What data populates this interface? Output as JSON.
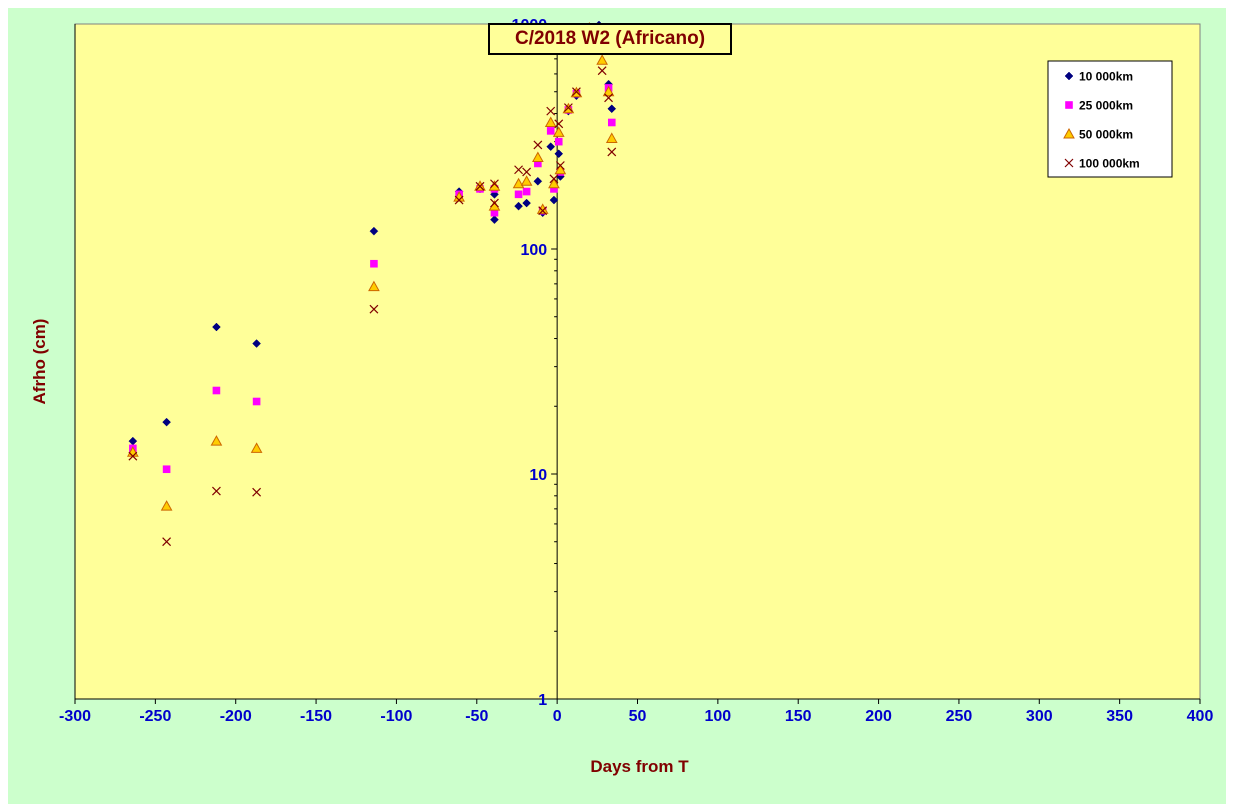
{
  "chart_data": {
    "type": "scatter",
    "title": "C/2018 W2 (Africano)",
    "xlabel": "Days from T",
    "ylabel": "Afrho (cm)",
    "xlim": [
      -300,
      400
    ],
    "ylim": [
      1,
      1000
    ],
    "yscale": "log",
    "x_ticks": [
      -300,
      -250,
      -200,
      -150,
      -100,
      -50,
      0,
      50,
      100,
      150,
      200,
      250,
      300,
      350,
      400
    ],
    "y_ticks": [
      1,
      10,
      100,
      1000
    ],
    "grid": false,
    "legend_position": "top-right",
    "colors": {
      "page_background": "#ccffcc",
      "plot_background": "#ffff99",
      "axis_label_color": "#0000cc",
      "title_color": "#800000"
    },
    "series": [
      {
        "name": "10 000km",
        "marker": "diamond",
        "color": "#000080",
        "points": [
          [
            -264,
            14
          ],
          [
            -243,
            17
          ],
          [
            -212,
            45
          ],
          [
            -187,
            38
          ],
          [
            -114,
            120
          ],
          [
            -61,
            180
          ],
          [
            -48,
            185
          ],
          [
            -39,
            135
          ],
          [
            -39,
            175
          ],
          [
            -24,
            155
          ],
          [
            -19,
            160
          ],
          [
            -12,
            200
          ],
          [
            -9,
            145
          ],
          [
            -4,
            285
          ],
          [
            -2,
            165
          ],
          [
            1,
            265
          ],
          [
            2,
            210
          ],
          [
            7,
            410
          ],
          [
            12,
            480
          ],
          [
            20,
            950
          ],
          [
            26,
            990
          ],
          [
            32,
            540
          ],
          [
            34,
            420
          ]
        ]
      },
      {
        "name": "25 000km",
        "marker": "square",
        "color": "#ff00ff",
        "points": [
          [
            -264,
            13
          ],
          [
            -243,
            10.5
          ],
          [
            -212,
            23.5
          ],
          [
            -187,
            21
          ],
          [
            -114,
            86
          ],
          [
            -61,
            175
          ],
          [
            -48,
            185
          ],
          [
            -39,
            145
          ],
          [
            -39,
            185
          ],
          [
            -24,
            175
          ],
          [
            -19,
            180
          ],
          [
            -12,
            240
          ],
          [
            -9,
            148
          ],
          [
            -4,
            335
          ],
          [
            -2,
            185
          ],
          [
            1,
            300
          ],
          [
            2,
            220
          ],
          [
            7,
            415
          ],
          [
            12,
            490
          ],
          [
            20,
            950
          ],
          [
            26,
            960
          ],
          [
            28,
            780
          ],
          [
            32,
            520
          ],
          [
            34,
            365
          ]
        ]
      },
      {
        "name": "50 000km",
        "marker": "triangle",
        "color": "#cc6600",
        "fill": "#ffcc00",
        "points": [
          [
            -264,
            12.5
          ],
          [
            -243,
            7.2
          ],
          [
            -212,
            14
          ],
          [
            -187,
            13
          ],
          [
            -114,
            68
          ],
          [
            -61,
            170
          ],
          [
            -48,
            190
          ],
          [
            -39,
            155
          ],
          [
            -39,
            190
          ],
          [
            -24,
            195
          ],
          [
            -19,
            200
          ],
          [
            -12,
            255
          ],
          [
            -9,
            150
          ],
          [
            -4,
            365
          ],
          [
            -2,
            195
          ],
          [
            1,
            330
          ],
          [
            2,
            225
          ],
          [
            7,
            420
          ],
          [
            12,
            495
          ],
          [
            20,
            960
          ],
          [
            26,
            930
          ],
          [
            28,
            690
          ],
          [
            32,
            500
          ],
          [
            34,
            310
          ]
        ]
      },
      {
        "name": "100 000km",
        "marker": "cross",
        "color": "#800000",
        "points": [
          [
            -264,
            12
          ],
          [
            -243,
            5
          ],
          [
            -212,
            8.4
          ],
          [
            -187,
            8.3
          ],
          [
            -114,
            54
          ],
          [
            -61,
            165
          ],
          [
            -48,
            190
          ],
          [
            -39,
            160
          ],
          [
            -39,
            195
          ],
          [
            -24,
            225
          ],
          [
            -19,
            220
          ],
          [
            -12,
            290
          ],
          [
            -9,
            148
          ],
          [
            -4,
            410
          ],
          [
            -2,
            205
          ],
          [
            1,
            360
          ],
          [
            2,
            235
          ],
          [
            7,
            425
          ],
          [
            12,
            500
          ],
          [
            20,
            960
          ],
          [
            26,
            900
          ],
          [
            28,
            620
          ],
          [
            32,
            470
          ],
          [
            34,
            270
          ]
        ]
      }
    ]
  }
}
